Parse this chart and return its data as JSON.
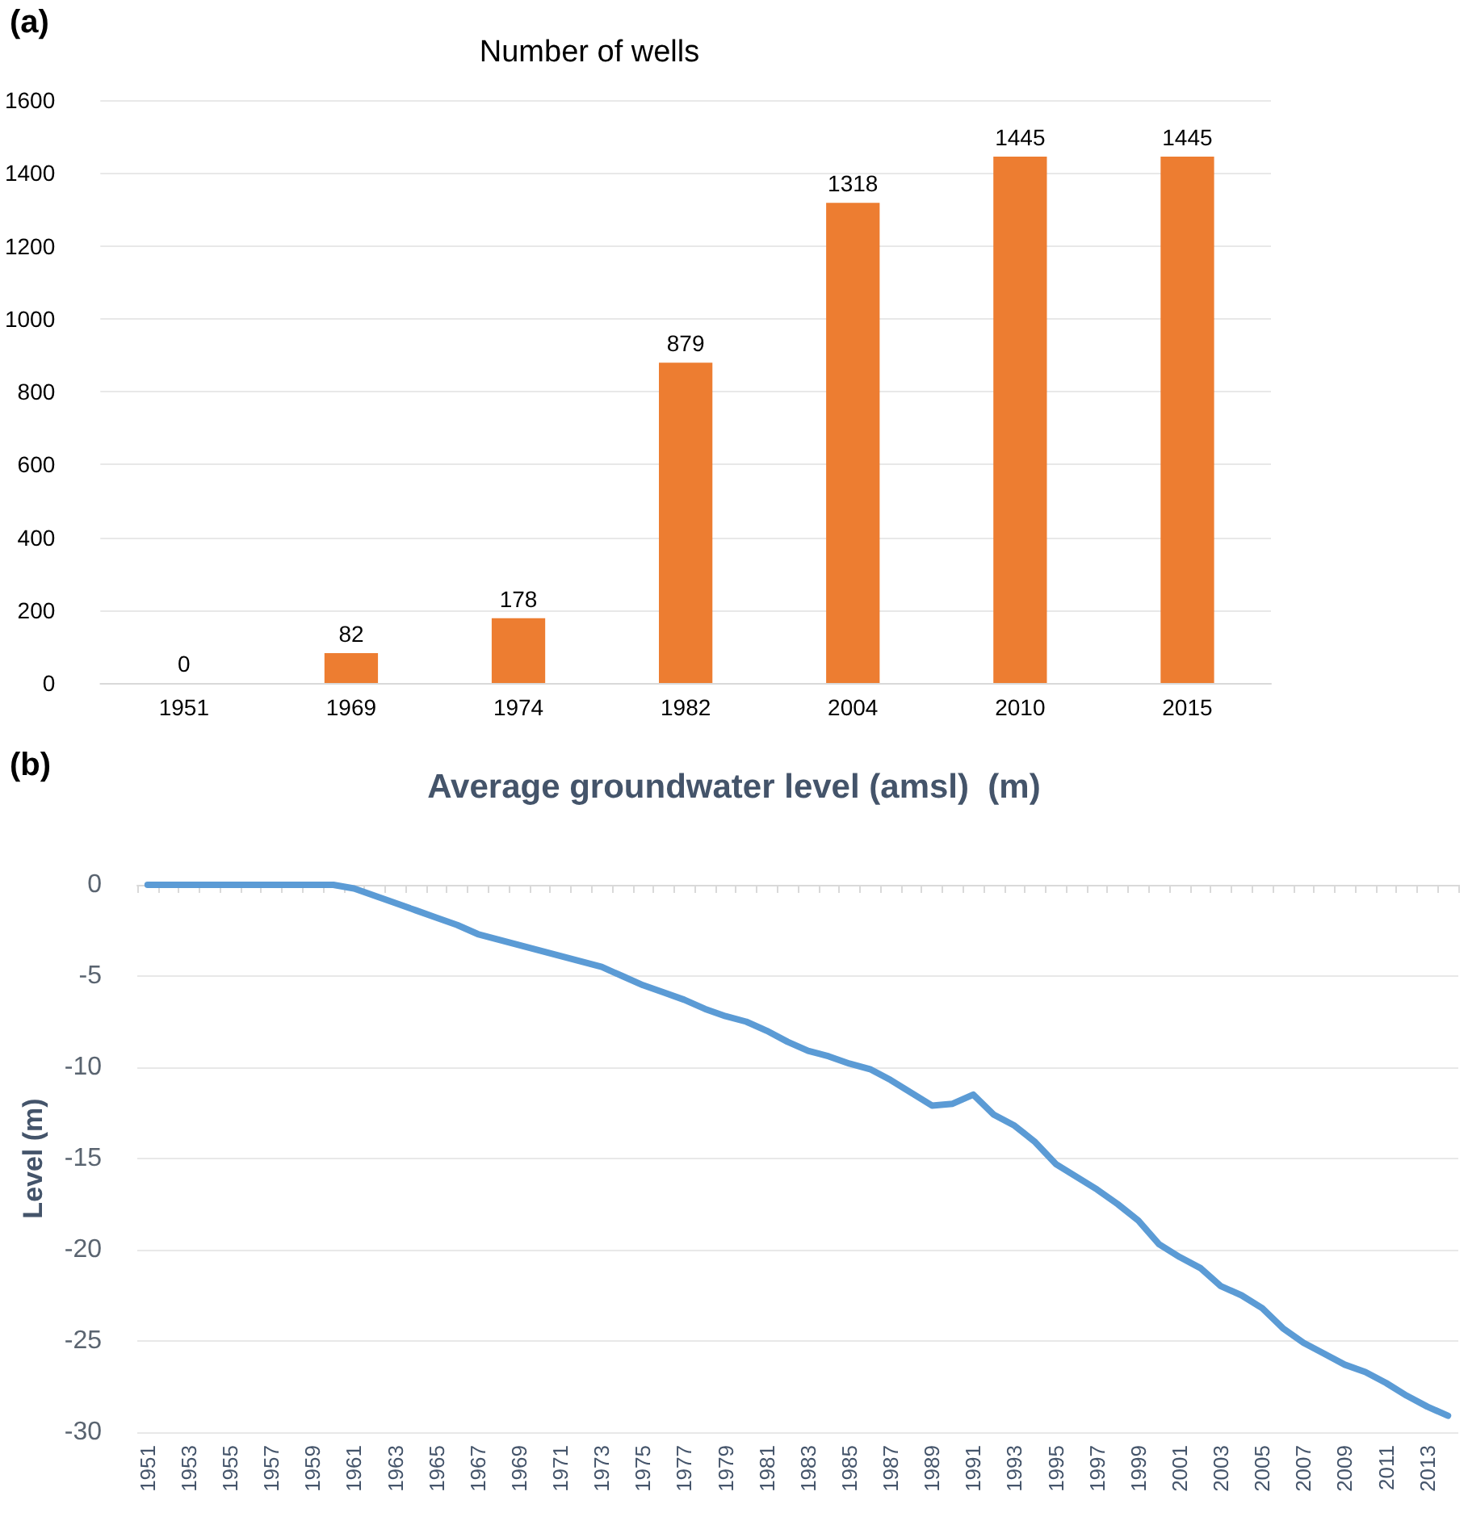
{
  "chart_data": [
    {
      "type": "bar",
      "title": "Number of wells",
      "annotations": [
        "(a)"
      ],
      "categories": [
        "1951",
        "1969",
        "1974",
        "1982",
        "2004",
        "2010",
        "2015"
      ],
      "values": [
        0,
        82,
        178,
        879,
        1318,
        1445,
        1445
      ],
      "color": "#ed7d31",
      "data_labels": true,
      "ylim": [
        0,
        1600
      ],
      "yticks": [
        0,
        200,
        400,
        600,
        800,
        1000,
        1200,
        1400,
        1600
      ],
      "grid": "y"
    },
    {
      "type": "line",
      "title": "Average groundwater level (amsl)  (m)",
      "ylabel": "Level (m)",
      "annotations": [
        "(b)"
      ],
      "categories": [
        "1951",
        null,
        "1953",
        null,
        "1955",
        null,
        "1957",
        null,
        "1959",
        null,
        "1961",
        null,
        "1963",
        null,
        "1965",
        null,
        "1967",
        null,
        "1969",
        null,
        "1971",
        null,
        "1973",
        null,
        "1975",
        null,
        "1977",
        null,
        "1979",
        null,
        "1981",
        null,
        "1983",
        null,
        "1985",
        null,
        "1987",
        null,
        "1989",
        null,
        "1991",
        null,
        "1993",
        null,
        "1995",
        null,
        "1997",
        null,
        "1999",
        null,
        "2001",
        null,
        "2003",
        null,
        "2005",
        null,
        "2007",
        null,
        "2009",
        null,
        "2011",
        null,
        "2013",
        null
      ],
      "values": [
        0,
        0,
        0,
        0,
        0,
        0,
        0,
        0,
        0,
        0,
        -0.2,
        -0.6,
        -1.0,
        -1.4,
        -1.8,
        -2.2,
        -2.7,
        -3.0,
        -3.3,
        -3.6,
        -3.9,
        -4.2,
        -4.5,
        -5.0,
        -5.5,
        -5.9,
        -6.3,
        -6.8,
        -7.2,
        -7.5,
        -8.0,
        -8.6,
        -9.1,
        -9.4,
        -9.8,
        -10.1,
        -10.7,
        -11.4,
        -12.1,
        -12.0,
        -11.5,
        -12.6,
        -13.2,
        -14.1,
        -15.3,
        -16.0,
        -16.7,
        -17.5,
        -18.4,
        -19.7,
        -20.4,
        -21.0,
        -22.0,
        -22.5,
        -23.2,
        -24.3,
        -25.1,
        -25.7,
        -26.3,
        -26.7,
        -27.3,
        -28.0,
        -28.6,
        -29.1
      ],
      "color": "#5b9bd5",
      "marker": "none",
      "line_style": "solid",
      "ylim": [
        -30,
        0
      ],
      "yticks": [
        -30,
        -25,
        -20,
        -15,
        -10,
        -5,
        0
      ],
      "grid": "y"
    }
  ]
}
